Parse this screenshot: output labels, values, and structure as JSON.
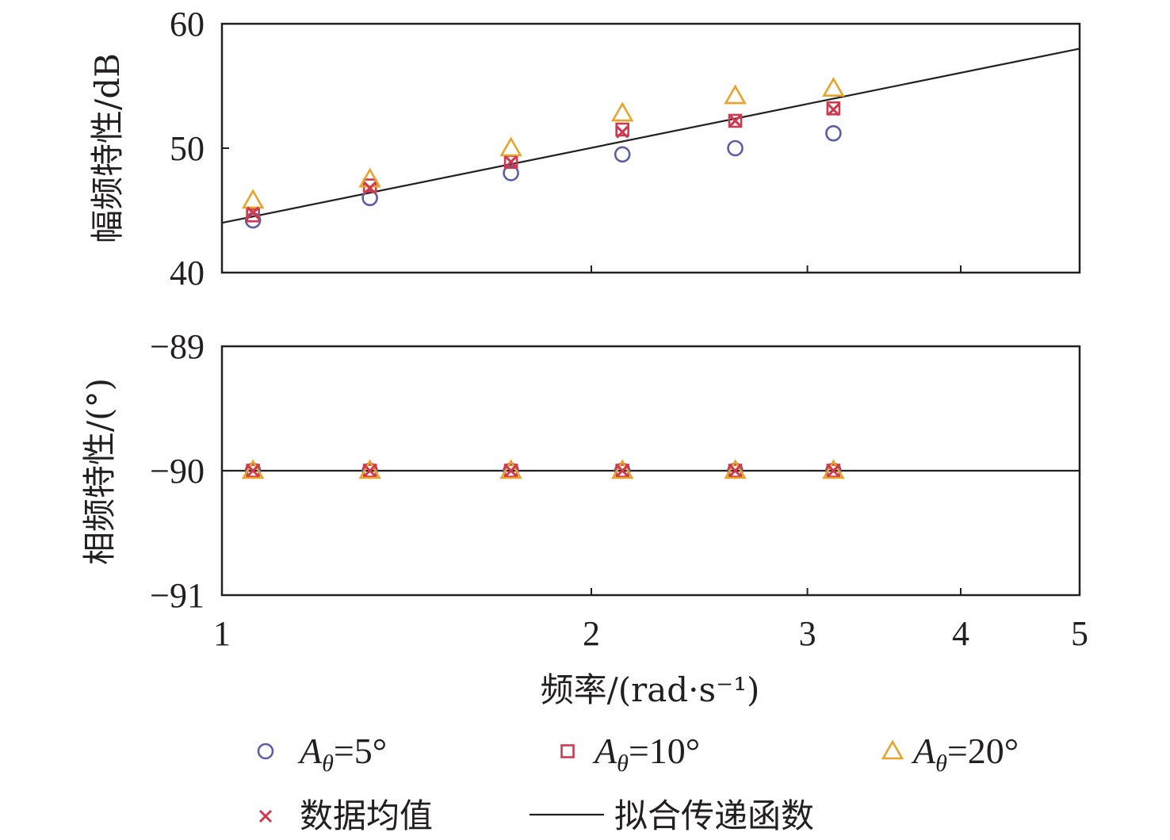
{
  "chart_data": [
    {
      "type": "scatter",
      "panel": "magnitude",
      "ylabel": "幅频特性/dB",
      "xlabel": "",
      "xscale": "log",
      "xlim": [
        1,
        5
      ],
      "ylim": [
        40,
        60
      ],
      "xticks": [
        1,
        2,
        3,
        4,
        5
      ],
      "yticks": [
        40,
        50,
        60
      ],
      "ytick_labels": [
        "40",
        "50",
        "60"
      ],
      "series": [
        {
          "name": "Aθ=5°",
          "marker": "circle",
          "color": "#5b5ea6",
          "x": [
            1.06,
            1.32,
            1.72,
            2.12,
            2.62,
            3.15
          ],
          "y": [
            44.2,
            46.0,
            48.0,
            49.5,
            50.0,
            51.2
          ]
        },
        {
          "name": "Aθ=10°",
          "marker": "square",
          "color": "#d0384e",
          "x": [
            1.06,
            1.32,
            1.72,
            2.12,
            2.62,
            3.15
          ],
          "y": [
            44.6,
            47.0,
            48.9,
            51.5,
            52.2,
            53.2
          ]
        },
        {
          "name": "Aθ=20°",
          "marker": "triangle",
          "color": "#e8a42a",
          "x": [
            1.06,
            1.32,
            1.72,
            2.12,
            2.62,
            3.15
          ],
          "y": [
            45.8,
            47.5,
            50.0,
            52.8,
            54.2,
            54.8
          ]
        },
        {
          "name": "数据均值",
          "marker": "x",
          "color": "#d0384e",
          "x": [
            1.06,
            1.32,
            1.72,
            2.12,
            2.62,
            3.15
          ],
          "y": [
            44.8,
            46.8,
            48.9,
            51.3,
            52.2,
            53.1
          ]
        },
        {
          "name": "拟合传递函数",
          "marker": "line",
          "color": "#231f20",
          "x": [
            1,
            5
          ],
          "y": [
            44.0,
            58.0
          ]
        }
      ]
    },
    {
      "type": "scatter",
      "panel": "phase",
      "ylabel": "相频特性/(°)",
      "xlabel": "频率/(rad·s⁻¹)",
      "xscale": "log",
      "xlim": [
        1,
        5
      ],
      "ylim": [
        -91,
        -89
      ],
      "xticks": [
        1,
        2,
        3,
        4,
        5
      ],
      "xtick_labels": [
        "1",
        "2",
        "3",
        "4",
        "5"
      ],
      "yticks": [
        -91,
        -90,
        -89
      ],
      "ytick_labels": [
        "−91",
        "−90",
        "−89"
      ],
      "series": [
        {
          "name": "Aθ=5°",
          "marker": "circle",
          "color": "#5b5ea6",
          "x": [
            1.06,
            1.32,
            1.72,
            2.12,
            2.62,
            3.15
          ],
          "y": [
            -90,
            -90,
            -90,
            -90,
            -90,
            -90
          ]
        },
        {
          "name": "Aθ=10°",
          "marker": "square",
          "color": "#d0384e",
          "x": [
            1.06,
            1.32,
            1.72,
            2.12,
            2.62,
            3.15
          ],
          "y": [
            -90,
            -90,
            -90,
            -90,
            -90,
            -90
          ]
        },
        {
          "name": "Aθ=20°",
          "marker": "triangle",
          "color": "#e8a42a",
          "x": [
            1.06,
            1.32,
            1.72,
            2.12,
            2.62,
            3.15
          ],
          "y": [
            -90,
            -90,
            -90,
            -90,
            -90,
            -90
          ]
        },
        {
          "name": "数据均值",
          "marker": "x",
          "color": "#d0384e",
          "x": [
            1.06,
            1.32,
            1.72,
            2.12,
            2.62,
            3.15
          ],
          "y": [
            -90,
            -90,
            -90,
            -90,
            -90,
            -90
          ]
        },
        {
          "name": "拟合传递函数",
          "marker": "line",
          "color": "#231f20",
          "x": [
            1,
            5
          ],
          "y": [
            -90,
            -90
          ]
        }
      ]
    }
  ],
  "legend": {
    "items": [
      {
        "sym": "A",
        "sub": "θ",
        "rest": "=5°",
        "marker": "circle",
        "color": "#5b5ea6"
      },
      {
        "sym": "A",
        "sub": "θ",
        "rest": "=10°",
        "marker": "square",
        "color": "#d0384e"
      },
      {
        "sym": "A",
        "sub": "θ",
        "rest": "=20°",
        "marker": "triangle",
        "color": "#e8a42a"
      },
      {
        "label": "数据均值",
        "marker": "x",
        "color": "#d0384e"
      },
      {
        "label": "拟合传递函数",
        "marker": "line",
        "color": "#231f20"
      }
    ]
  }
}
